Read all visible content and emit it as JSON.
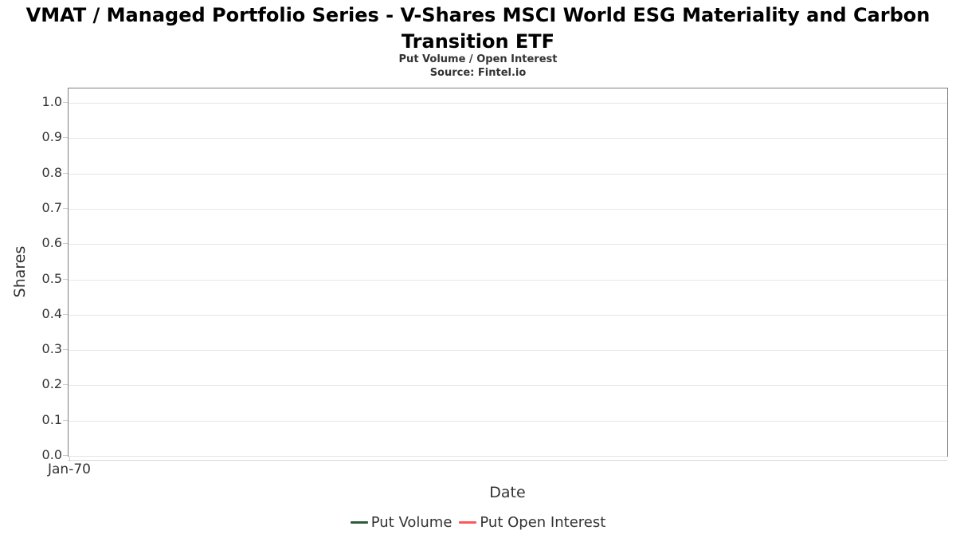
{
  "header": {
    "title_lines": [
      "VMAT / Managed Portfolio Series - V-Shares MSCI World ESG Materiality and Carbon",
      "Transition ETF"
    ],
    "subtitle": "Put Volume / Open Interest",
    "source": "Source: Fintel.io"
  },
  "chart_data": {
    "type": "line",
    "title": "VMAT / Managed Portfolio Series - V-Shares MSCI World ESG Materiality and Carbon Transition ETF",
    "subtitle": "Put Volume / Open Interest",
    "xlabel": "Date",
    "ylabel": "Shares",
    "ylim": [
      0,
      1.05
    ],
    "y_ticks": [
      "0.0",
      "0.1",
      "0.2",
      "0.3",
      "0.4",
      "0.5",
      "0.6",
      "0.7",
      "0.8",
      "0.9",
      "1.0"
    ],
    "x_ticks": [
      "Jan-70"
    ],
    "grid": true,
    "legend_position": "bottom",
    "series": [
      {
        "name": "Put Volume",
        "color": "#2d5c3e",
        "x": [],
        "values": []
      },
      {
        "name": "Put Open Interest",
        "color": "#fb5a5a",
        "x": [],
        "values": []
      }
    ]
  },
  "colors": {
    "plot_border": "#808080",
    "gridline": "#e6e6e6",
    "tick_mark": "#cccccc",
    "axis_text": "#333333",
    "title_text": "#000000"
  }
}
